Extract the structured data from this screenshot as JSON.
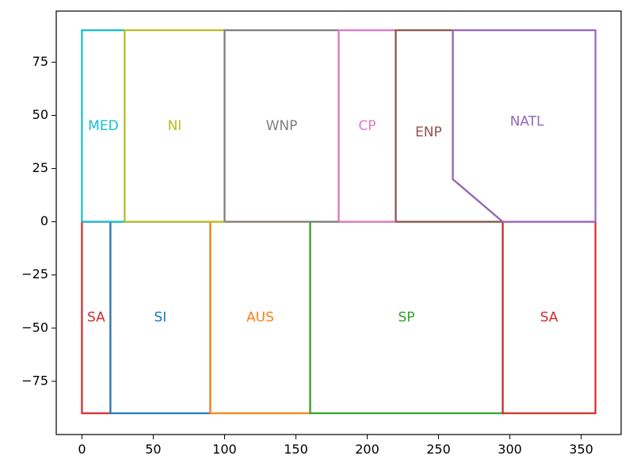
{
  "chart_data": {
    "type": "line",
    "title": "",
    "xlabel": "",
    "ylabel": "",
    "xlim": [
      -18,
      378
    ],
    "ylim": [
      -100,
      99
    ],
    "xticks": [
      0,
      50,
      100,
      150,
      200,
      250,
      300,
      350
    ],
    "yticks": [
      -75,
      -50,
      -25,
      0,
      25,
      50,
      75
    ],
    "xtick_labels": [
      "0",
      "50",
      "100",
      "150",
      "200",
      "250",
      "300",
      "350"
    ],
    "ytick_labels": [
      "−75",
      "−50",
      "−25",
      "0",
      "25",
      "50",
      "75"
    ],
    "grid": false,
    "series": [
      {
        "name": "SA",
        "color": "#d62728",
        "label_pos": [
          10,
          -45
        ],
        "points": [
          [
            0,
            0
          ],
          [
            0,
            -90
          ],
          [
            20,
            -90
          ],
          [
            20,
            0
          ],
          [
            0,
            0
          ]
        ]
      },
      {
        "name": "SI",
        "color": "#1f77b4",
        "label_pos": [
          55,
          -45
        ],
        "points": [
          [
            20,
            0
          ],
          [
            20,
            -90
          ],
          [
            90,
            -90
          ],
          [
            90,
            0
          ],
          [
            20,
            0
          ]
        ]
      },
      {
        "name": "AUS",
        "color": "#ff7f0e",
        "label_pos": [
          125,
          -45
        ],
        "points": [
          [
            90,
            0
          ],
          [
            90,
            -90
          ],
          [
            160,
            -90
          ],
          [
            160,
            0
          ],
          [
            90,
            0
          ]
        ]
      },
      {
        "name": "SP",
        "color": "#2ca02c",
        "label_pos": [
          227.5,
          -45
        ],
        "points": [
          [
            160,
            0
          ],
          [
            160,
            -90
          ],
          [
            295,
            -90
          ],
          [
            295,
            0
          ],
          [
            160,
            0
          ]
        ]
      },
      {
        "name": "SA",
        "color": "#d62728",
        "label_pos": [
          327.5,
          -45
        ],
        "points": [
          [
            295,
            0
          ],
          [
            295,
            -90
          ],
          [
            360,
            -90
          ],
          [
            360,
            0
          ],
          [
            295,
            0
          ]
        ]
      },
      {
        "name": "MED",
        "color": "#17becf",
        "label_pos": [
          15,
          45
        ],
        "points": [
          [
            0,
            0
          ],
          [
            0,
            90
          ],
          [
            30,
            90
          ],
          [
            30,
            0
          ],
          [
            0,
            0
          ]
        ]
      },
      {
        "name": "NI",
        "color": "#bcbd22",
        "label_pos": [
          65,
          45
        ],
        "points": [
          [
            30,
            0
          ],
          [
            30,
            90
          ],
          [
            100,
            90
          ],
          [
            100,
            0
          ],
          [
            30,
            0
          ]
        ]
      },
      {
        "name": "WNP",
        "color": "#7f7f7f",
        "label_pos": [
          140,
          45
        ],
        "points": [
          [
            100,
            0
          ],
          [
            100,
            90
          ],
          [
            180,
            90
          ],
          [
            180,
            0
          ],
          [
            100,
            0
          ]
        ]
      },
      {
        "name": "CP",
        "color": "#e377c2",
        "label_pos": [
          200,
          45
        ],
        "points": [
          [
            180,
            0
          ],
          [
            180,
            90
          ],
          [
            220,
            90
          ],
          [
            220,
            0
          ],
          [
            180,
            0
          ]
        ]
      },
      {
        "name": "ENP",
        "color": "#8c564b",
        "label_pos": [
          243,
          42
        ],
        "points": [
          [
            220,
            0
          ],
          [
            220,
            90
          ],
          [
            260,
            90
          ],
          [
            260,
            20
          ],
          [
            295,
            0
          ],
          [
            220,
            0
          ]
        ]
      },
      {
        "name": "NATL",
        "color": "#9467bd",
        "label_pos": [
          312,
          47
        ],
        "points": [
          [
            295,
            0
          ],
          [
            260,
            20
          ],
          [
            260,
            90
          ],
          [
            360,
            90
          ],
          [
            360,
            0
          ],
          [
            295,
            0
          ]
        ]
      }
    ]
  }
}
